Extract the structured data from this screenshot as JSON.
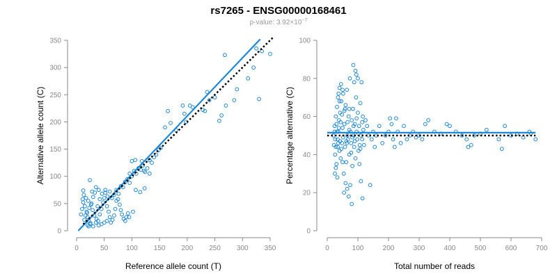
{
  "header": {
    "title": "rs7265 - ENSG00000168461",
    "pvalue_prefix": "p-value: 3.92×10",
    "pvalue_exp": "−7"
  },
  "colors": {
    "points": "#1f88d6",
    "fit_line": "#1f88d6",
    "reference_line": "#000000"
  },
  "chart_data": [
    {
      "type": "scatter",
      "title": "",
      "xlabel": "Reference allele count (T)",
      "ylabel": "Alternative allele count (C)",
      "xlim": [
        0,
        350
      ],
      "ylim": [
        0,
        350
      ],
      "xticks": [
        0,
        50,
        100,
        150,
        200,
        250,
        300,
        350
      ],
      "yticks": [
        0,
        50,
        100,
        150,
        200,
        250,
        300,
        350
      ],
      "grid": false,
      "lines": [
        {
          "style": "solid",
          "color": "#1f88d6",
          "points": [
            [
              3,
              0
            ],
            [
              332,
              352
            ]
          ]
        },
        {
          "style": "dotted",
          "color": "#000000",
          "points": [
            [
              12,
              12
            ],
            [
              355,
              355
            ]
          ]
        }
      ],
      "points": [
        [
          12,
          74
        ],
        [
          10,
          40
        ],
        [
          8,
          30
        ],
        [
          15,
          45
        ],
        [
          12,
          52
        ],
        [
          18,
          35
        ],
        [
          20,
          25
        ],
        [
          22,
          18
        ],
        [
          25,
          14
        ],
        [
          14,
          20
        ],
        [
          16,
          28
        ],
        [
          19,
          33
        ],
        [
          23,
          42
        ],
        [
          27,
          50
        ],
        [
          30,
          62
        ],
        [
          33,
          70
        ],
        [
          28,
          72
        ],
        [
          35,
          80
        ],
        [
          40,
          75
        ],
        [
          24,
          93
        ],
        [
          11,
          58
        ],
        [
          13,
          66
        ],
        [
          17,
          60
        ],
        [
          21,
          55
        ],
        [
          26,
          48
        ],
        [
          29,
          38
        ],
        [
          32,
          28
        ],
        [
          36,
          22
        ],
        [
          39,
          18
        ],
        [
          42,
          30
        ],
        [
          45,
          40
        ],
        [
          48,
          52
        ],
        [
          50,
          60
        ],
        [
          52,
          70
        ],
        [
          55,
          45
        ],
        [
          58,
          35
        ],
        [
          60,
          25
        ],
        [
          62,
          15
        ],
        [
          65,
          20
        ],
        [
          68,
          28
        ],
        [
          70,
          40
        ],
        [
          72,
          55
        ],
        [
          75,
          58
        ],
        [
          78,
          48
        ],
        [
          80,
          38
        ],
        [
          82,
          30
        ],
        [
          85,
          22
        ],
        [
          88,
          18
        ],
        [
          90,
          25
        ],
        [
          93,
          32
        ],
        [
          20,
          10
        ],
        [
          22,
          8
        ],
        [
          25,
          12
        ],
        [
          30,
          8
        ],
        [
          35,
          15
        ],
        [
          40,
          10
        ],
        [
          45,
          12
        ],
        [
          50,
          15
        ],
        [
          55,
          18
        ],
        [
          38,
          45
        ],
        [
          42,
          58
        ],
        [
          46,
          68
        ],
        [
          52,
          75
        ],
        [
          56,
          63
        ],
        [
          60,
          72
        ],
        [
          64,
          60
        ],
        [
          68,
          66
        ],
        [
          72,
          75
        ],
        [
          76,
          68
        ],
        [
          80,
          82
        ],
        [
          84,
          80
        ],
        [
          88,
          90
        ],
        [
          92,
          95
        ],
        [
          96,
          88
        ],
        [
          100,
          100
        ],
        [
          104,
          110
        ],
        [
          108,
          105
        ],
        [
          112,
          115
        ],
        [
          116,
          112
        ],
        [
          120,
          120
        ],
        [
          124,
          108
        ],
        [
          128,
          115
        ],
        [
          132,
          130
        ],
        [
          136,
          125
        ],
        [
          140,
          135
        ],
        [
          144,
          140
        ],
        [
          148,
          148
        ],
        [
          152,
          152
        ],
        [
          100,
          128
        ],
        [
          106,
          130
        ],
        [
          118,
          128
        ],
        [
          122,
          110
        ],
        [
          102,
          35
        ],
        [
          95,
          25
        ],
        [
          132,
          105
        ],
        [
          96,
          105
        ],
        [
          107,
          75
        ],
        [
          123,
          78
        ],
        [
          115,
          71
        ],
        [
          165,
          220
        ],
        [
          192,
          230
        ],
        [
          180,
          185
        ],
        [
          170,
          198
        ],
        [
          160,
          190
        ],
        [
          195,
          215
        ],
        [
          210,
          227
        ],
        [
          228,
          222
        ],
        [
          232,
          220
        ],
        [
          236,
          255
        ],
        [
          240,
          240
        ],
        [
          250,
          245
        ],
        [
          258,
          202
        ],
        [
          262,
          212
        ],
        [
          270,
          230
        ],
        [
          285,
          240
        ],
        [
          290,
          260
        ],
        [
          310,
          280
        ],
        [
          320,
          300
        ],
        [
          325,
          335
        ],
        [
          330,
          242
        ],
        [
          335,
          330
        ],
        [
          350,
          325
        ],
        [
          268,
          323
        ],
        [
          205,
          230
        ],
        [
          198,
          200
        ]
      ]
    },
    {
      "type": "scatter",
      "title": "",
      "xlabel": "Total number of reads",
      "ylabel": "Percentage alternative (C)",
      "xlim": [
        0,
        700
      ],
      "ylim": [
        0,
        100
      ],
      "xticks": [
        0,
        100,
        200,
        300,
        400,
        500,
        600,
        700
      ],
      "yticks": [
        0,
        20,
        40,
        60,
        80,
        100
      ],
      "grid": false,
      "lines": [
        {
          "style": "solid",
          "color": "#1f88d6",
          "points": [
            [
              0,
              51.5
            ],
            [
              680,
              51.5
            ]
          ]
        },
        {
          "style": "dotted",
          "color": "#000000",
          "points": [
            [
              0,
              50
            ],
            [
              680,
              50
            ]
          ]
        }
      ],
      "points": [
        [
          20,
          50
        ],
        [
          22,
          45
        ],
        [
          24,
          55
        ],
        [
          26,
          40
        ],
        [
          28,
          60
        ],
        [
          30,
          35
        ],
        [
          32,
          65
        ],
        [
          34,
          48
        ],
        [
          36,
          52
        ],
        [
          38,
          58
        ],
        [
          40,
          42
        ],
        [
          42,
          62
        ],
        [
          44,
          38
        ],
        [
          46,
          68
        ],
        [
          48,
          46
        ],
        [
          50,
          54
        ],
        [
          52,
          72
        ],
        [
          54,
          30
        ],
        [
          56,
          56
        ],
        [
          58,
          44
        ],
        [
          60,
          66
        ],
        [
          62,
          36
        ],
        [
          64,
          74
        ],
        [
          66,
          50
        ],
        [
          68,
          48
        ],
        [
          70,
          60
        ],
        [
          72,
          40
        ],
        [
          74,
          80
        ],
        [
          76,
          52
        ],
        [
          78,
          46
        ],
        [
          80,
          58
        ],
        [
          82,
          34
        ],
        [
          84,
          64
        ],
        [
          86,
          50
        ],
        [
          88,
          44
        ],
        [
          90,
          56
        ],
        [
          92,
          38
        ],
        [
          94,
          70
        ],
        [
          96,
          52
        ],
        [
          98,
          48
        ],
        [
          100,
          62
        ],
        [
          102,
          42
        ],
        [
          104,
          55
        ],
        [
          106,
          45
        ],
        [
          108,
          67
        ],
        [
          110,
          50
        ],
        [
          112,
          78
        ],
        [
          114,
          48
        ],
        [
          116,
          60
        ],
        [
          118,
          53
        ],
        [
          25,
          30
        ],
        [
          28,
          33
        ],
        [
          33,
          28
        ],
        [
          35,
          70
        ],
        [
          37,
          72
        ],
        [
          40,
          75
        ],
        [
          45,
          77
        ],
        [
          50,
          74
        ],
        [
          55,
          20
        ],
        [
          60,
          25
        ],
        [
          65,
          22
        ],
        [
          70,
          18
        ],
        [
          75,
          24
        ],
        [
          80,
          14
        ],
        [
          85,
          87
        ],
        [
          88,
          78
        ],
        [
          92,
          84
        ],
        [
          95,
          82
        ],
        [
          100,
          80
        ],
        [
          105,
          35
        ],
        [
          110,
          26
        ],
        [
          115,
          17
        ],
        [
          120,
          45
        ],
        [
          125,
          58
        ],
        [
          130,
          55
        ],
        [
          135,
          50
        ],
        [
          140,
          24
        ],
        [
          145,
          48
        ],
        [
          150,
          52
        ],
        [
          155,
          44
        ],
        [
          160,
          50
        ],
        [
          170,
          55
        ],
        [
          180,
          46
        ],
        [
          190,
          50
        ],
        [
          200,
          52
        ],
        [
          205,
          59
        ],
        [
          210,
          56
        ],
        [
          215,
          48
        ],
        [
          220,
          44
        ],
        [
          225,
          59
        ],
        [
          230,
          52
        ],
        [
          240,
          46
        ],
        [
          250,
          55
        ],
        [
          260,
          48
        ],
        [
          270,
          50
        ],
        [
          280,
          52
        ],
        [
          290,
          49
        ],
        [
          300,
          50
        ],
        [
          310,
          48
        ],
        [
          320,
          56
        ],
        [
          330,
          58
        ],
        [
          350,
          52
        ],
        [
          370,
          51
        ],
        [
          390,
          56
        ],
        [
          400,
          55
        ],
        [
          420,
          52
        ],
        [
          440,
          50
        ],
        [
          455,
          48
        ],
        [
          460,
          44
        ],
        [
          470,
          45
        ],
        [
          480,
          50
        ],
        [
          500,
          51
        ],
        [
          520,
          53
        ],
        [
          560,
          48
        ],
        [
          570,
          43
        ],
        [
          580,
          55
        ],
        [
          600,
          50
        ],
        [
          620,
          51
        ],
        [
          640,
          49
        ],
        [
          660,
          52
        ],
        [
          665,
          51
        ],
        [
          680,
          48
        ],
        [
          44,
          57
        ],
        [
          48,
          61
        ],
        [
          52,
          49
        ],
        [
          56,
          63
        ],
        [
          62,
          47
        ],
        [
          66,
          57
        ],
        [
          72,
          53
        ],
        [
          78,
          41
        ],
        [
          82,
          49
        ],
        [
          86,
          55
        ],
        [
          90,
          47
        ],
        [
          96,
          59
        ],
        [
          102,
          51
        ],
        [
          108,
          43
        ],
        [
          114,
          57
        ],
        [
          40,
          68
        ],
        [
          58,
          64
        ],
        [
          64,
          46
        ],
        [
          72,
          64
        ],
        [
          50,
          36
        ],
        [
          34,
          44
        ],
        [
          38,
          54
        ],
        [
          42,
          47
        ],
        [
          46,
          43
        ],
        [
          30,
          56
        ],
        [
          32,
          52
        ],
        [
          36,
          46
        ],
        [
          26,
          48
        ],
        [
          24,
          52
        ],
        [
          28,
          44
        ]
      ]
    }
  ]
}
